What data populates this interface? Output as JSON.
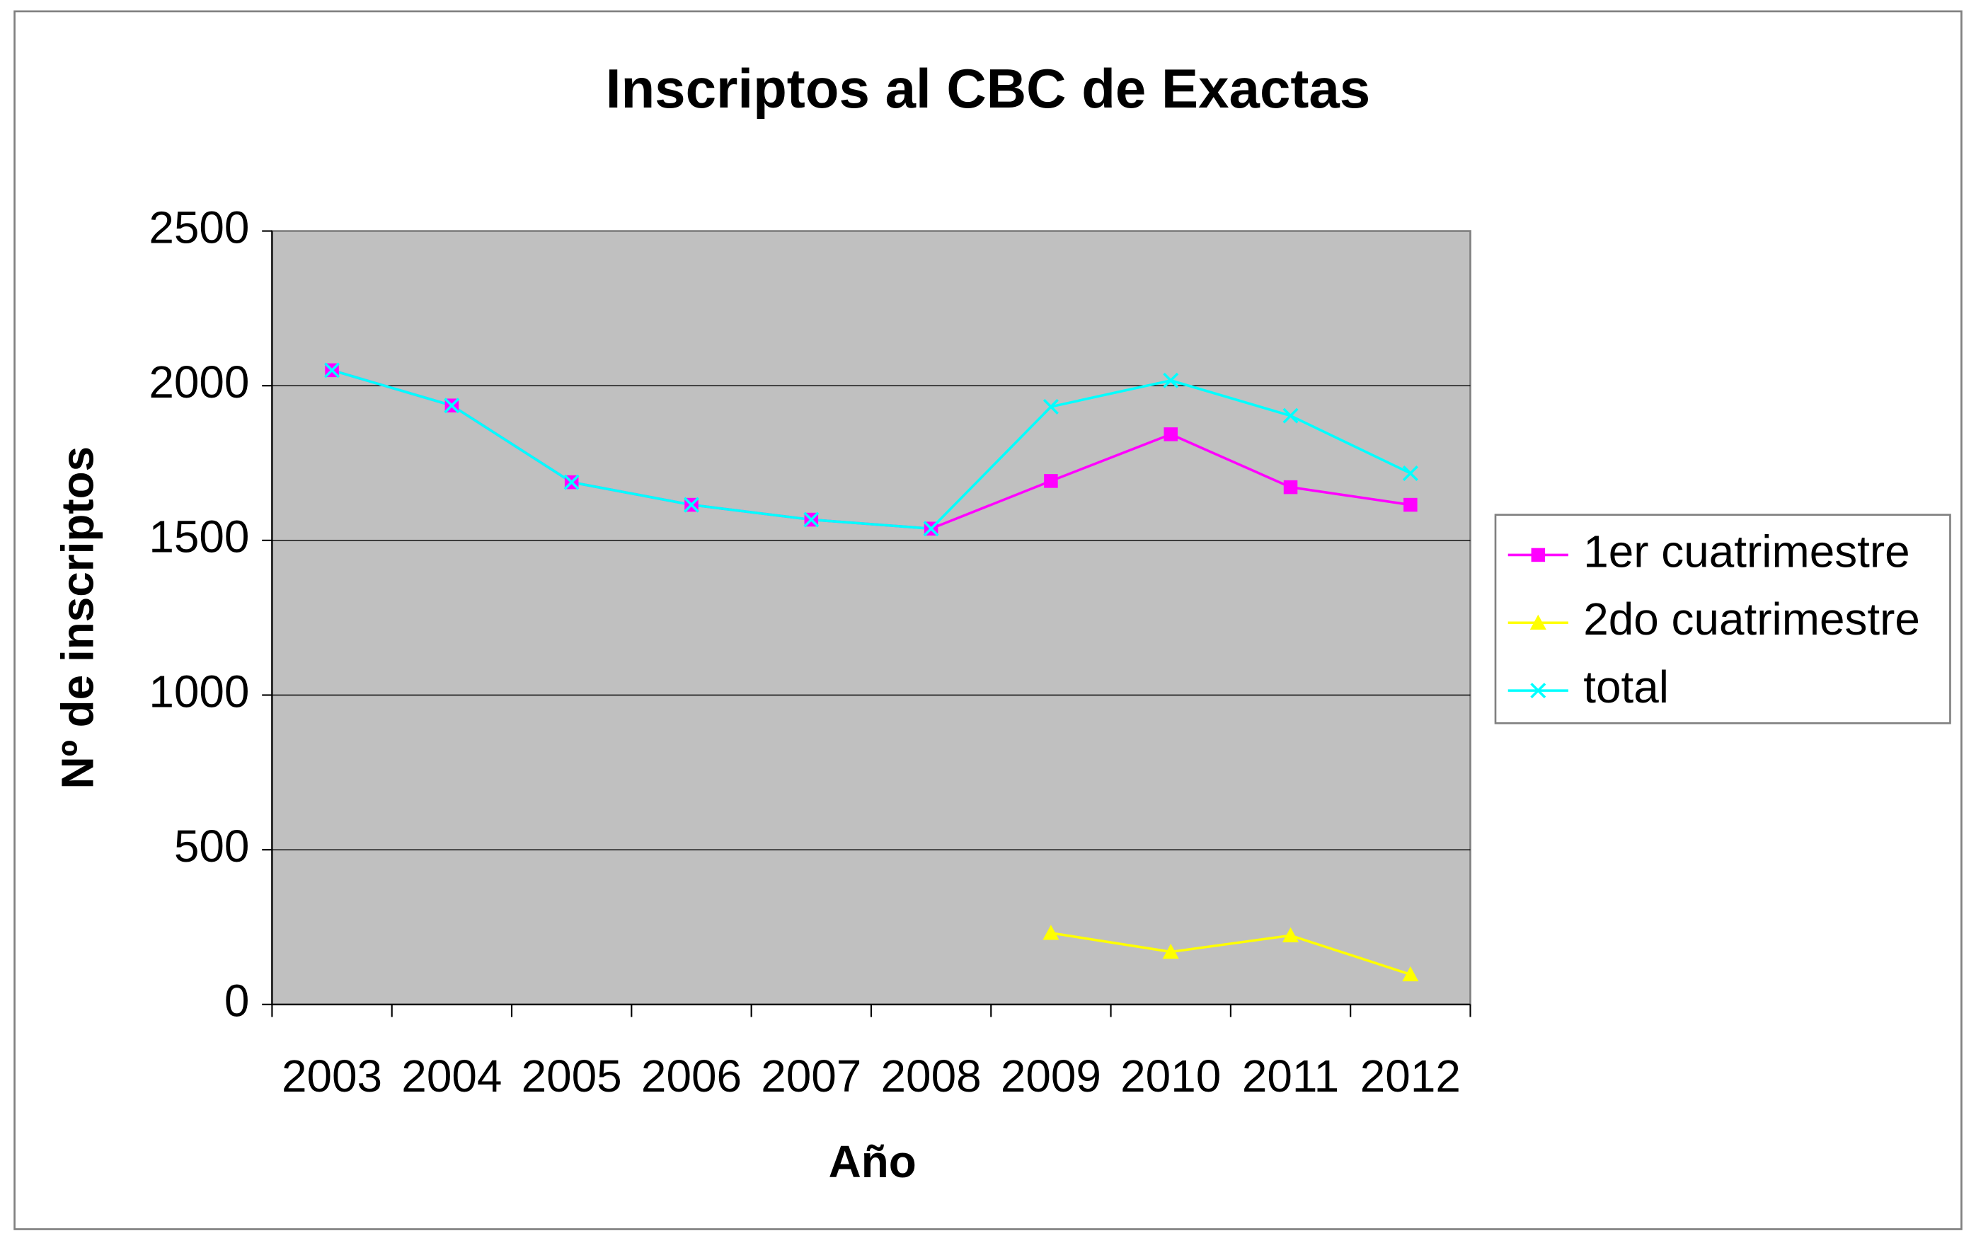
{
  "chart_data": {
    "type": "line",
    "title": "Inscriptos al CBC de Exactas",
    "x_label": "Año",
    "y_label": "Nº de inscriptos",
    "categories": [
      "2003",
      "2004",
      "2005",
      "2006",
      "2007",
      "2008",
      "2009",
      "2010",
      "2011",
      "2012"
    ],
    "series": [
      {
        "name": "1er cuatrimestre",
        "color": "#ff00ff",
        "marker": "square",
        "values": [
          2050,
          1936,
          1688,
          1615,
          1567,
          1538,
          1692,
          1843,
          1672,
          1615
        ]
      },
      {
        "name": "2do cuatrimestre",
        "color": "#ffff00",
        "marker": "triangle",
        "values": [
          null,
          null,
          null,
          null,
          null,
          null,
          231,
          170,
          223,
          97
        ]
      },
      {
        "name": "total",
        "color": "#00ffff",
        "marker": "x",
        "values": [
          2050,
          1936,
          1688,
          1615,
          1567,
          1538,
          1932,
          2017,
          1903,
          1717
        ]
      }
    ],
    "ylim": [
      0,
      2500
    ],
    "yticks": [
      0,
      500,
      1000,
      1500,
      2000,
      2500
    ],
    "grid": true,
    "legend": "right"
  }
}
